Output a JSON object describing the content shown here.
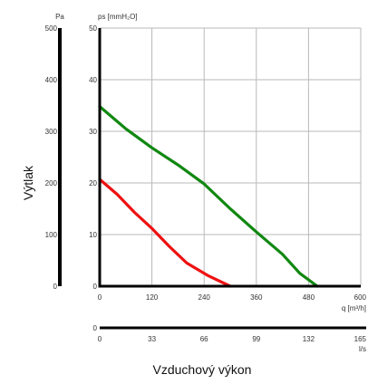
{
  "chart_data": {
    "type": "line",
    "ylabel": "Výtlak",
    "xlabel": "Vzduchový výkon",
    "y_axis_left": {
      "unit": "Pa",
      "range": [
        0,
        500
      ],
      "ticks": [
        0,
        100,
        200,
        300,
        400,
        500
      ]
    },
    "y_axis_main": {
      "unit": "ps [mmH₂O]",
      "range": [
        0,
        50
      ],
      "ticks": [
        0,
        10,
        20,
        30,
        40,
        50
      ]
    },
    "x_axis_main": {
      "unit": "q [m³/h]",
      "range": [
        0,
        600
      ],
      "ticks": [
        0,
        120,
        240,
        360,
        480,
        600
      ]
    },
    "x_axis_secondary": {
      "unit": "l/s",
      "range": [
        0,
        165
      ],
      "ticks": [
        0,
        33,
        66,
        99,
        132,
        165
      ]
    },
    "grid": true,
    "colors": {
      "green": "#118811",
      "red": "#ee1111",
      "grid": "#b9b9b9",
      "axis": "#000000"
    },
    "series": [
      {
        "color": "green",
        "x": [
          0,
          60,
          120,
          180,
          240,
          300,
          360,
          420,
          460,
          500
        ],
        "y": [
          34.8,
          30.5,
          26.8,
          23.5,
          19.8,
          15,
          10.5,
          6.2,
          2.5,
          0
        ]
      },
      {
        "color": "red",
        "x": [
          0,
          40,
          80,
          120,
          160,
          200,
          250,
          300
        ],
        "y": [
          20.7,
          17.8,
          14.3,
          11.2,
          7.7,
          4.5,
          2,
          0
        ]
      }
    ]
  }
}
